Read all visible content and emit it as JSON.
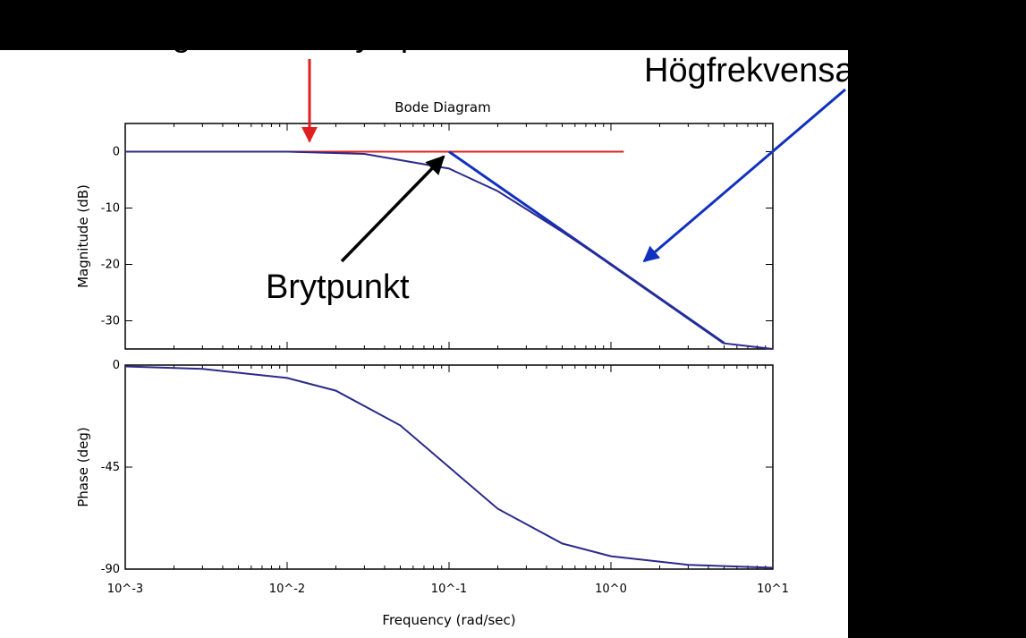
{
  "annotations": {
    "lowfreq": "Lågfrekvensasymptot",
    "highfreq": "Högfrekvensasymptot",
    "break_point": "Brytpunkt"
  },
  "colors": {
    "lowfreq_arrow": "#e02020",
    "highfreq_arrow": "#1030c0",
    "break_arrow": "#000000",
    "curve": "#2a2a8a"
  },
  "chart_data": [
    {
      "type": "line",
      "title": "Bode Diagram",
      "ylabel": "Magnitude (dB)",
      "xscale": "log",
      "xlim": [
        0.001,
        10
      ],
      "ylim": [
        -35,
        5
      ],
      "yticks": [
        0,
        -10,
        -20,
        -30
      ],
      "ytick_labels": [
        "0",
        "-10",
        "-20",
        "-30"
      ],
      "x": [
        0.001,
        0.003,
        0.01,
        0.03,
        0.1,
        0.2,
        0.5,
        1,
        2,
        5,
        10
      ],
      "series": [
        {
          "values": [
            0,
            0,
            0,
            -0.4,
            -3,
            -7,
            -14.2,
            -20,
            -26,
            -34,
            -40
          ]
        }
      ],
      "asymptotes": {
        "low": {
          "x": [
            0.001,
            0.1
          ],
          "y": [
            0,
            0
          ]
        },
        "high": {
          "x": [
            0.1,
            10
          ],
          "y": [
            0,
            -40
          ]
        }
      },
      "break_frequency": 0.1
    },
    {
      "type": "line",
      "ylabel": "Phase (deg)",
      "xlabel": "Frequency (rad/sec)",
      "xscale": "log",
      "xlim": [
        0.001,
        10
      ],
      "ylim": [
        -90,
        0
      ],
      "yticks": [
        0,
        -45,
        -90
      ],
      "ytick_labels": [
        "0",
        "-45",
        "-90"
      ],
      "xtick_labels": [
        "10^-3",
        "10^-2",
        "10^-1",
        "10^0",
        "10^1"
      ],
      "x": [
        0.001,
        0.003,
        0.01,
        0.02,
        0.05,
        0.1,
        0.2,
        0.5,
        1,
        3,
        10
      ],
      "series": [
        {
          "values": [
            -0.6,
            -1.7,
            -5.7,
            -11.3,
            -26.6,
            -45,
            -63.4,
            -78.7,
            -84.3,
            -88.1,
            -89.4
          ]
        }
      ]
    }
  ]
}
